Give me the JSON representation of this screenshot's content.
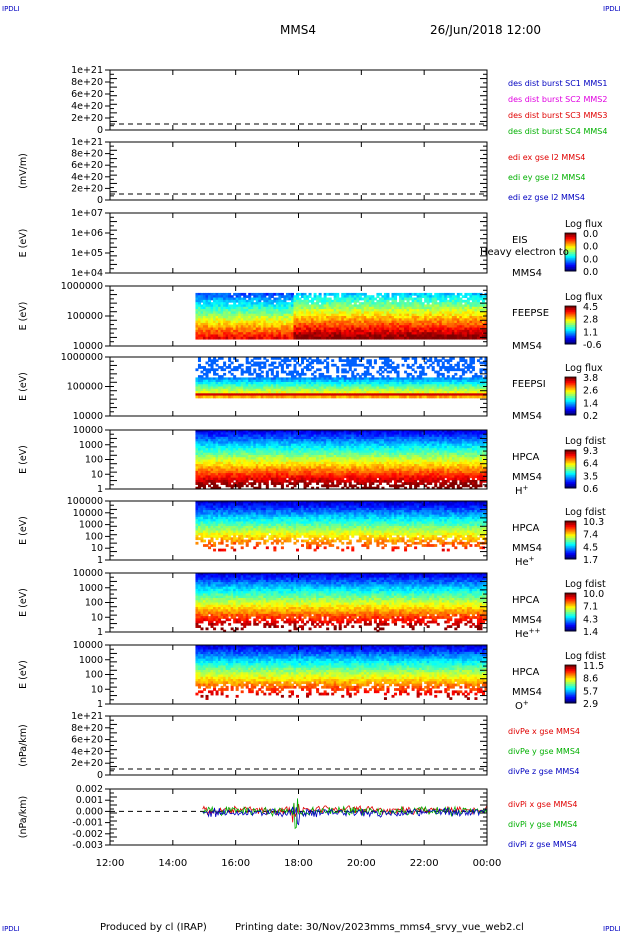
{
  "corner_tl": "IPDLI",
  "corner_tr": "IPDLI",
  "corner_bl": "IPDLI",
  "corner_br": "IPDLI",
  "header": {
    "spacecraft": "MMS4",
    "datetime": "26/Jun/2018 12:00"
  },
  "footer": {
    "producer": "Produced by cl (IRAP)",
    "printing": "Printing date: 30/Nov/2023",
    "script": "mms_mms4_srvy_vue_web2.cl"
  },
  "time_axis": {
    "start": "12:00",
    "end": "00:00",
    "ticks": [
      "12:00",
      "14:00",
      "16:00",
      "18:00",
      "20:00",
      "22:00",
      "00:00"
    ]
  },
  "colors": {
    "red": "#e00000",
    "green": "#00b000",
    "blue": "#0000c0",
    "magenta": "#e000e0"
  },
  "chart_data": [
    {
      "type": "line",
      "ylabel": "",
      "yticks": [
        "1e+21",
        "8e+20",
        "6e+20",
        "4e+20",
        "2e+20",
        "0"
      ],
      "legend": [
        {
          "label": "des dist burst SC1 MMS1",
          "color": "#0000c0"
        },
        {
          "label": "des dist burst SC2 MMS2",
          "color": "#e000e0"
        },
        {
          "label": "des dist burst SC3 MMS3",
          "color": "#e00000"
        },
        {
          "label": "des dist burst SC4 MMS4",
          "color": "#00b000"
        }
      ]
    },
    {
      "type": "line",
      "ylabel": "(mV/m)",
      "yticks": [
        "1e+21",
        "8e+20",
        "6e+20",
        "4e+20",
        "2e+20",
        "0"
      ],
      "legend": [
        {
          "label": "edi ex gse l2 MMS4",
          "color": "#e00000"
        },
        {
          "label": "edi ey gse l2 MMS4",
          "color": "#00b000"
        },
        {
          "label": "edi ez gse l2 MMS4",
          "color": "#0000c0"
        }
      ]
    },
    {
      "type": "heatmap",
      "ylabel": "E (eV)",
      "yticks": [
        "1e+07",
        "1e+06",
        "1e+05",
        "1e+04"
      ],
      "right_labels": [
        "EIS",
        "MMS4"
      ],
      "overlay": "Heavy electron to",
      "colorbar": {
        "title": "Log flux",
        "ticks": [
          "0.0",
          "0.0",
          "0.0",
          "0.0"
        ]
      }
    },
    {
      "type": "heatmap",
      "ylabel": "E (eV)",
      "yticks": [
        "1000000",
        "100000",
        "10000"
      ],
      "right_labels": [
        "FEEPSE",
        "MMS4"
      ],
      "colorbar": {
        "title": "Log flux",
        "ticks": [
          "4.5",
          "2.8",
          "1.1",
          "-0.6"
        ]
      }
    },
    {
      "type": "heatmap",
      "ylabel": "E (eV)",
      "yticks": [
        "1000000",
        "100000",
        "10000"
      ],
      "right_labels": [
        "FEEPSI",
        "MMS4"
      ],
      "colorbar": {
        "title": "Log flux",
        "ticks": [
          "3.8",
          "2.6",
          "1.4",
          "0.2"
        ]
      }
    },
    {
      "type": "heatmap",
      "ylabel": "E (eV)",
      "yticks": [
        "10000",
        "1000",
        "100",
        "10",
        "1"
      ],
      "right_labels": [
        "HPCA",
        "MMS4"
      ],
      "species": "H",
      "species_sup": "+",
      "colorbar": {
        "title": "Log fdist",
        "ticks": [
          "9.3",
          "6.4",
          "3.5",
          "0.6"
        ]
      }
    },
    {
      "type": "heatmap",
      "ylabel": "E (eV)",
      "yticks": [
        "100000",
        "10000",
        "1000",
        "100",
        "10",
        "1"
      ],
      "right_labels": [
        "HPCA",
        "MMS4"
      ],
      "species": "He",
      "species_sup": "+",
      "colorbar": {
        "title": "Log fdist",
        "ticks": [
          "10.3",
          "7.4",
          "4.5",
          "1.7"
        ]
      }
    },
    {
      "type": "heatmap",
      "ylabel": "E (eV)",
      "yticks": [
        "10000",
        "1000",
        "100",
        "10",
        "1"
      ],
      "right_labels": [
        "HPCA",
        "MMS4"
      ],
      "species": "He",
      "species_sup": "++",
      "colorbar": {
        "title": "Log fdist",
        "ticks": [
          "10.0",
          "7.1",
          "4.3",
          "1.4"
        ]
      }
    },
    {
      "type": "heatmap",
      "ylabel": "E (eV)",
      "yticks": [
        "10000",
        "1000",
        "100",
        "10",
        "1"
      ],
      "right_labels": [
        "HPCA",
        "MMS4"
      ],
      "species": "O",
      "species_sup": "+",
      "colorbar": {
        "title": "Log fdist",
        "ticks": [
          "11.5",
          "8.6",
          "5.7",
          "2.9"
        ]
      }
    },
    {
      "type": "line",
      "ylabel": "(nPa/km)",
      "yticks": [
        "1e+21",
        "8e+20",
        "6e+20",
        "4e+20",
        "2e+20",
        "0"
      ],
      "legend": [
        {
          "label": "divPe x gse MMS4",
          "color": "#e00000"
        },
        {
          "label": "divPe y gse MMS4",
          "color": "#00b000"
        },
        {
          "label": "divPe z gse MMS4",
          "color": "#0000c0"
        }
      ]
    },
    {
      "type": "line",
      "ylabel": "(nPa/km)",
      "yticks": [
        "0.002",
        "0.001",
        "0.000",
        "-0.001",
        "-0.002",
        "-0.003"
      ],
      "legend": [
        {
          "label": "divPi x gse MMS4",
          "color": "#e00000"
        },
        {
          "label": "divPi y gse MMS4",
          "color": "#00b000"
        },
        {
          "label": "divPi z gse MMS4",
          "color": "#0000c0"
        }
      ]
    }
  ]
}
